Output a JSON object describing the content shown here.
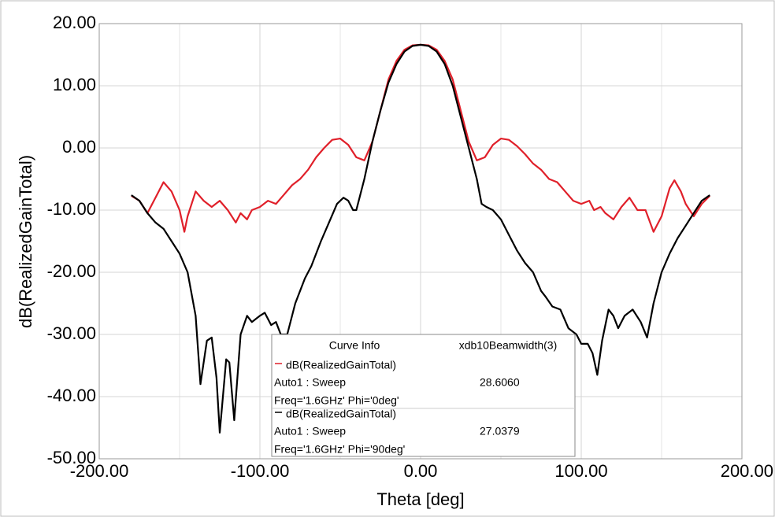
{
  "chart_data": {
    "type": "line",
    "xlabel": "Theta [deg]",
    "ylabel": "dB(RealizedGainTotal)",
    "xlim": [
      -200,
      200
    ],
    "ylim": [
      -50,
      20
    ],
    "xticks": [
      {
        "value": -200,
        "label": "-200.00"
      },
      {
        "value": -100,
        "label": "-100.00"
      },
      {
        "value": 0,
        "label": "0.00"
      },
      {
        "value": 100,
        "label": "100.00"
      },
      {
        "value": 200,
        "label": "200.00"
      }
    ],
    "xminor": [
      -150,
      -50,
      50,
      150
    ],
    "yticks": [
      {
        "value": -50,
        "label": "-50.00"
      },
      {
        "value": -40,
        "label": "-40.00"
      },
      {
        "value": -30,
        "label": "-30.00"
      },
      {
        "value": -20,
        "label": "-20.00"
      },
      {
        "value": -10,
        "label": "-10.00"
      },
      {
        "value": 0,
        "label": "0.00"
      },
      {
        "value": 10,
        "label": "10.00"
      },
      {
        "value": 20,
        "label": "20.00"
      }
    ],
    "grid": true,
    "legend_header": [
      "Curve Info",
      "xdb10Beamwidth(3)"
    ],
    "series": [
      {
        "name": "dB(RealizedGainTotal)",
        "sweep": "Auto1 : Sweep",
        "context": "Freq='1.6GHz' Phi='0deg'",
        "beamwidth": {
          "value": 28.606,
          "label": "28.6060"
        },
        "color": "#e0202a",
        "x": [
          -180,
          -175,
          -170,
          -165,
          -160,
          -155,
          -150,
          -147,
          -145,
          -140,
          -135,
          -130,
          -125,
          -120,
          -115,
          -112,
          -108,
          -105,
          -100,
          -95,
          -90,
          -85,
          -80,
          -75,
          -70,
          -65,
          -60,
          -55,
          -50,
          -45,
          -40,
          -35,
          -30,
          -25,
          -20,
          -15,
          -10,
          -5,
          0,
          5,
          10,
          15,
          20,
          25,
          30,
          35,
          40,
          45,
          50,
          55,
          60,
          65,
          70,
          75,
          80,
          85,
          90,
          95,
          100,
          105,
          108,
          112,
          115,
          120,
          125,
          130,
          135,
          140,
          145,
          150,
          155,
          158,
          162,
          165,
          170,
          175,
          180
        ],
        "values": [
          -7.7,
          -8.5,
          -10.5,
          -8,
          -5.5,
          -7,
          -10,
          -13.5,
          -11,
          -7,
          -8.5,
          -9.5,
          -8.5,
          -10,
          -12,
          -10.5,
          -11.5,
          -10,
          -9.5,
          -8.5,
          -9,
          -7.5,
          -6,
          -5,
          -3.5,
          -1.5,
          0,
          1.3,
          1.5,
          0.5,
          -1.5,
          -2,
          1,
          6,
          11,
          14,
          15.8,
          16.5,
          16.6,
          16.5,
          15.8,
          14,
          11,
          6,
          1,
          -2,
          -1.5,
          0.5,
          1.5,
          1.3,
          0.3,
          -1,
          -2.5,
          -3.5,
          -5,
          -5.5,
          -7,
          -8.5,
          -9,
          -8.5,
          -10,
          -9.5,
          -10.5,
          -11.5,
          -9.5,
          -8,
          -10,
          -10,
          -13.5,
          -11,
          -6.5,
          -5.2,
          -7,
          -9,
          -11,
          -9,
          -7.7
        ]
      },
      {
        "name": "dB(RealizedGainTotal)",
        "sweep": "Auto1 : Sweep",
        "context": "Freq='1.6GHz' Phi='90deg'",
        "beamwidth": {
          "value": 27.0379,
          "label": "27.0379"
        },
        "color": "#000000",
        "x": [
          -180,
          -175,
          -170,
          -165,
          -160,
          -155,
          -150,
          -145,
          -140,
          -137,
          -133,
          -130,
          -127,
          -125,
          -121,
          -119,
          -116,
          -112,
          -108,
          -105,
          -100,
          -97,
          -93,
          -90,
          -87,
          -83,
          -78,
          -72,
          -68,
          -62,
          -57,
          -52,
          -48,
          -45,
          -42,
          -40,
          -35,
          -30,
          -25,
          -20,
          -15,
          -10,
          -5,
          0,
          5,
          10,
          15,
          20,
          25,
          30,
          35,
          38,
          41,
          45,
          50,
          55,
          60,
          65,
          70,
          75,
          78,
          82,
          87,
          92,
          97,
          100,
          104,
          107,
          110,
          113,
          117,
          120,
          123,
          127,
          132,
          137,
          141,
          145,
          150,
          155,
          160,
          165,
          170,
          175,
          180
        ],
        "values": [
          -7.6,
          -8.5,
          -10.5,
          -12,
          -13,
          -15,
          -17,
          -20,
          -27,
          -38,
          -31,
          -30.5,
          -37,
          -45.8,
          -34,
          -34.5,
          -43.8,
          -30,
          -27,
          -28,
          -27,
          -26.5,
          -28.5,
          -28,
          -30,
          -30,
          -25,
          -21,
          -19,
          -15,
          -12,
          -9,
          -8,
          -8.5,
          -10,
          -10,
          -5,
          1,
          6,
          10.5,
          13.5,
          15.5,
          16.4,
          16.6,
          16.4,
          15.5,
          13.5,
          10,
          5,
          0,
          -5,
          -9,
          -9.5,
          -10,
          -11.5,
          -14,
          -16.5,
          -18.5,
          -20,
          -23,
          -24,
          -25.5,
          -26,
          -29,
          -30,
          -31.5,
          -31.5,
          -33,
          -36.5,
          -31,
          -26,
          -27,
          -29,
          -27,
          -26,
          -28,
          -30.5,
          -25,
          -20,
          -17,
          -14.5,
          -12.5,
          -10.5,
          -8.5,
          -7.6
        ]
      }
    ]
  }
}
